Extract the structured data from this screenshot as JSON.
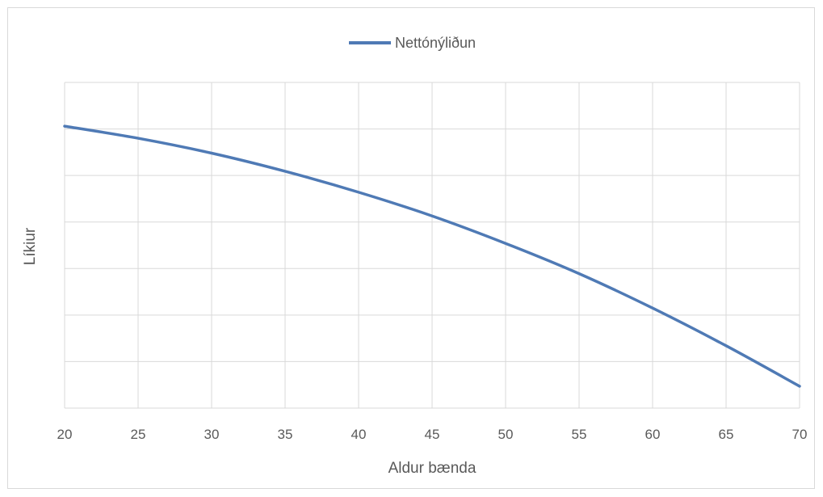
{
  "chart_data": {
    "type": "line",
    "title": "",
    "xlabel": "Aldur bænda",
    "ylabel": "Líkiur",
    "x": [
      20,
      25,
      30,
      35,
      40,
      45,
      50,
      55,
      60,
      65,
      70
    ],
    "xlim": [
      20,
      70
    ],
    "ylim": [
      0,
      7
    ],
    "y_tick_labels_shown": false,
    "grid": true,
    "legend_position": "top",
    "series": [
      {
        "name": "Nettónýliðun",
        "color": "#4f7ab5",
        "values": [
          6.06,
          5.8,
          5.48,
          5.09,
          4.64,
          4.13,
          3.54,
          2.89,
          2.15,
          1.34,
          0.47
        ]
      }
    ],
    "colors": {
      "grid": "#d9d9d9",
      "text": "#595959",
      "border": "#d9d9d9"
    }
  }
}
